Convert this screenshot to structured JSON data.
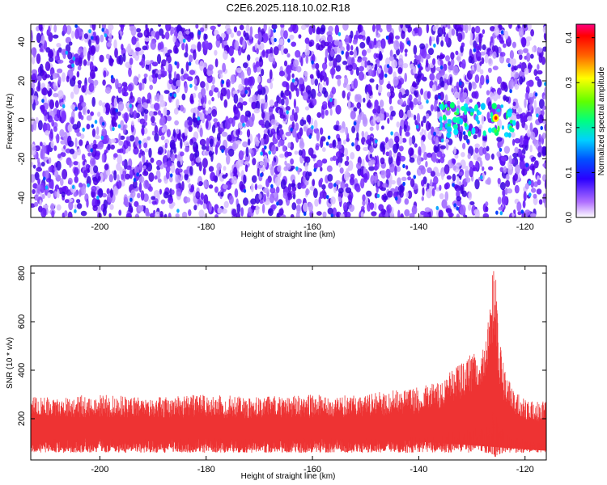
{
  "title": "C2E6.2025.118.10.02.R18",
  "chart_data": [
    {
      "type": "heatmap",
      "xlabel": "Height of straight line (km)",
      "ylabel": "Frequency (Hz)",
      "xlim": [
        -213,
        -116
      ],
      "ylim": [
        -50,
        49
      ],
      "xticks": [
        -200,
        -180,
        -160,
        -140,
        -120
      ],
      "yticks": [
        -40,
        -20,
        0,
        20,
        40
      ],
      "colorbar": {
        "label": "Normalized spectral amplitude",
        "range": [
          0.0,
          0.43
        ],
        "ticks": [
          0.0,
          0.1,
          0.2,
          0.3,
          0.4
        ],
        "tick_labels": [
          "0.0",
          "0.1",
          "0.2",
          "0.3",
          "0.4"
        ]
      },
      "hotspot": {
        "x": -125.5,
        "y": 1,
        "peak_value": 0.33,
        "x_extent": [
          -136,
          -122
        ],
        "y_extent": [
          -8,
          8
        ]
      },
      "quiet_band": {
        "x_range": [
          -127,
          -125
        ],
        "y_range": [
          -50,
          -5
        ]
      },
      "colors": {
        "low": "#ffffff",
        "mid": "#6a00ff",
        "high": "#ff0000"
      }
    },
    {
      "type": "line",
      "xlabel": "Height of straight line (km)",
      "ylabel": "SNR (10 * v/v)",
      "xlim": [
        -213,
        -116
      ],
      "ylim": [
        30,
        830
      ],
      "xticks": [
        -200,
        -180,
        -160,
        -140,
        -120
      ],
      "yticks": [
        200,
        400,
        600,
        800
      ],
      "series": [
        {
          "color": "#ee3333",
          "envelope": {
            "x": [
              -213,
              -200,
              -190,
              -180,
              -170,
              -160,
              -150,
              -145,
              -140,
              -136,
              -134,
              -132,
              -130,
              -128,
              -127,
              -126,
              -125.5,
              -125,
              -124,
              -122,
              -120,
              -116
            ],
            "min": [
              60,
              60,
              60,
              60,
              60,
              60,
              60,
              60,
              60,
              60,
              60,
              60,
              60,
              60,
              55,
              50,
              35,
              50,
              60,
              60,
              60,
              60
            ],
            "max": [
              290,
              300,
              290,
              300,
              290,
              300,
              300,
              320,
              330,
              360,
              400,
              430,
              480,
              500,
              600,
              830,
              820,
              560,
              420,
              320,
              280,
              270
            ]
          }
        }
      ]
    }
  ]
}
